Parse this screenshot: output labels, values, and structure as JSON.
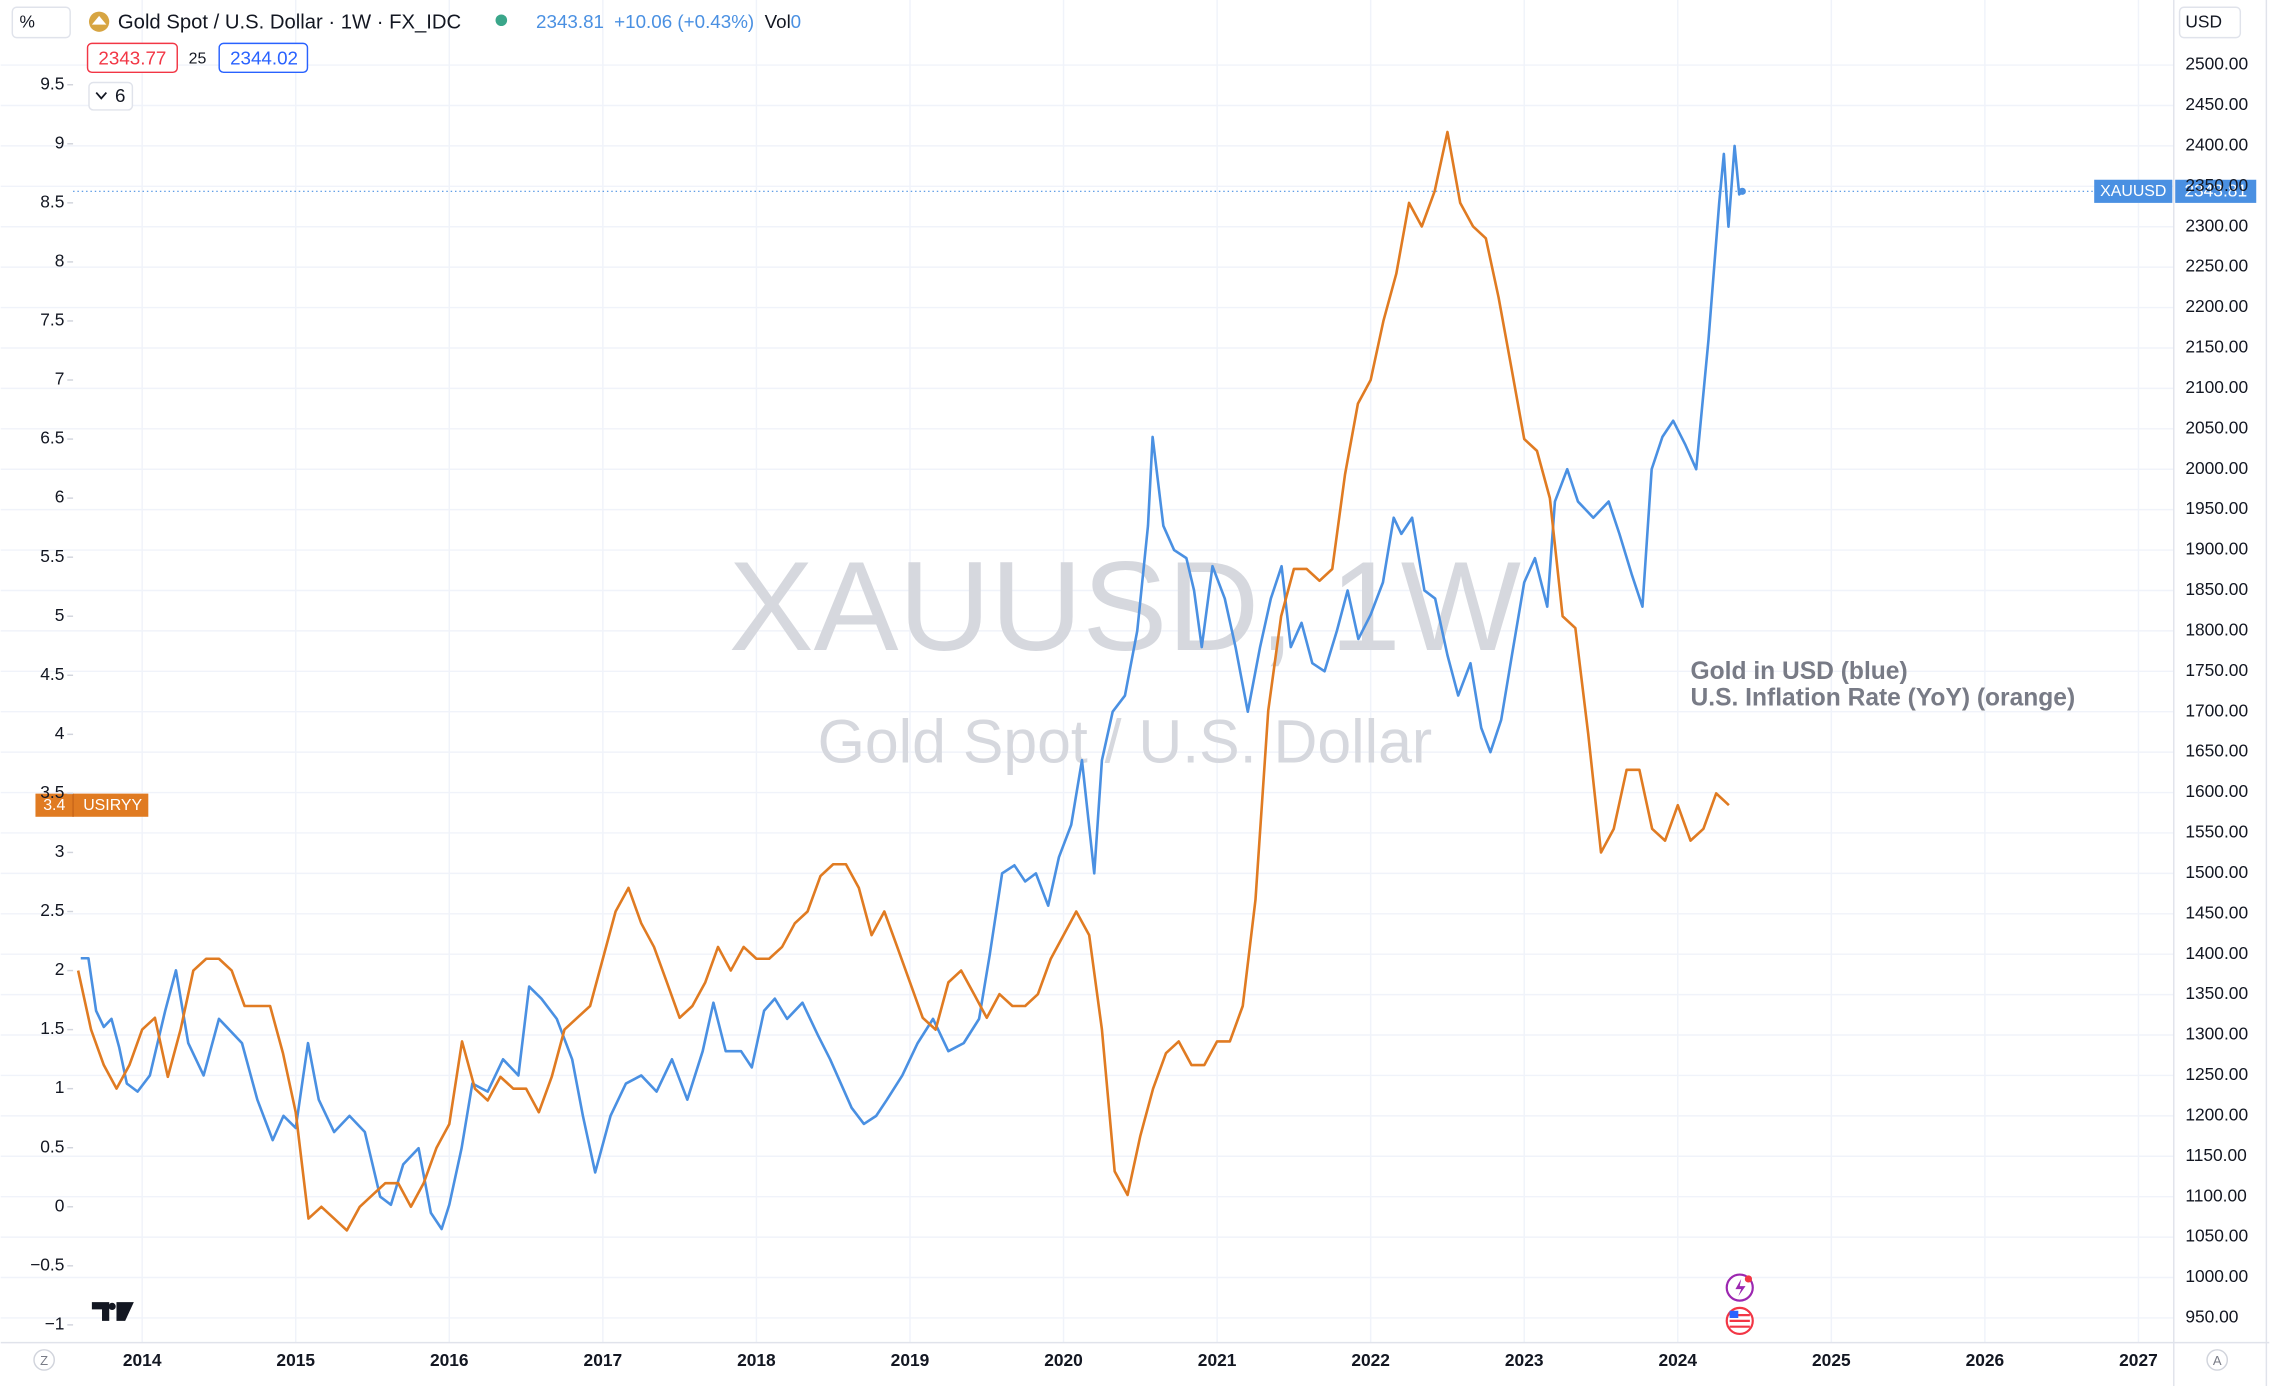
{
  "chart_data": {
    "type": "line",
    "title": "Gold Spot / U.S. Dollar · 1W · FX_IDC",
    "header": {
      "price": "2343.81",
      "change": "+10.06 (+0.43%)",
      "vol_label": "Vol",
      "vol": "0",
      "sell": "2343.77",
      "spread": "25",
      "buy": "2344.02",
      "indicators": "6",
      "scale_mode": "%",
      "currency": "USD",
      "left_button": "Z",
      "right_button": "A"
    },
    "watermark": [
      "XAUUSD, 1W",
      "Gold Spot / U.S. Dollar"
    ],
    "annotations": [
      "Gold in USD (blue)",
      "U.S. Inflation Rate (YoY) (orange)"
    ],
    "grid": true,
    "xlim": [
      2013.55,
      2027.23
    ],
    "xticks": [
      2014,
      2015,
      2016,
      2017,
      2018,
      2019,
      2020,
      2021,
      2022,
      2023,
      2024,
      2025,
      2026,
      2027
    ],
    "ylim": [
      -1.15,
      9.85
    ],
    "yticks": [
      {
        "value": -1,
        "label": "−1"
      },
      {
        "value": -0.5,
        "label": "−0.5"
      },
      0,
      0.5,
      1,
      1.5,
      2,
      2.5,
      3,
      3.5,
      4,
      4.5,
      5,
      5.5,
      6,
      6.5,
      7,
      7.5,
      8,
      8.5,
      9,
      9.5
    ],
    "y2lim": [
      919.5,
      2526.8
    ],
    "y2ticks": [
      {
        "value": 950,
        "label": "950.00"
      },
      {
        "value": 1000,
        "label": "1000.00"
      },
      {
        "value": 1050,
        "label": "1050.00"
      },
      {
        "value": 1100,
        "label": "1100.00"
      },
      {
        "value": 1150,
        "label": "1150.00"
      },
      {
        "value": 1200,
        "label": "1200.00"
      },
      {
        "value": 1250,
        "label": "1250.00"
      },
      {
        "value": 1300,
        "label": "1300.00"
      },
      {
        "value": 1350,
        "label": "1350.00"
      },
      {
        "value": 1400,
        "label": "1400.00"
      },
      {
        "value": 1450,
        "label": "1450.00"
      },
      {
        "value": 1500,
        "label": "1500.00"
      },
      {
        "value": 1550,
        "label": "1550.00"
      },
      {
        "value": 1600,
        "label": "1600.00"
      },
      {
        "value": 1650,
        "label": "1650.00"
      },
      {
        "value": 1700,
        "label": "1700.00"
      },
      {
        "value": 1750,
        "label": "1750.00"
      },
      {
        "value": 1800,
        "label": "1800.00"
      },
      {
        "value": 1850,
        "label": "1850.00"
      },
      {
        "value": 1900,
        "label": "1900.00"
      },
      {
        "value": 1950,
        "label": "1950.00"
      },
      {
        "value": 2000,
        "label": "2000.00"
      },
      {
        "value": 2050,
        "label": "2050.00"
      },
      {
        "value": 2100,
        "label": "2100.00"
      },
      {
        "value": 2150,
        "label": "2150.00"
      },
      {
        "value": 2200,
        "label": "2200.00"
      },
      {
        "value": 2250,
        "label": "2250.00"
      },
      {
        "value": 2300,
        "label": "2300.00"
      },
      {
        "value": 2350,
        "label": "2350.00"
      },
      {
        "value": 2400,
        "label": "2400.00"
      },
      {
        "value": 2450,
        "label": "2450.00"
      },
      {
        "value": 2500,
        "label": "2500.00"
      }
    ],
    "series": [
      {
        "name": "XAUUSD",
        "color": "#4a90e2",
        "axis": "y2",
        "x": [
          2013.6,
          2013.65,
          2013.7,
          2013.75,
          2013.8,
          2013.85,
          2013.9,
          2013.97,
          2014.05,
          2014.15,
          2014.22,
          2014.3,
          2014.4,
          2014.5,
          2014.55,
          2014.65,
          2014.75,
          2014.85,
          2014.92,
          2015.0,
          2015.08,
          2015.15,
          2015.25,
          2015.35,
          2015.45,
          2015.55,
          2015.62,
          2015.7,
          2015.8,
          2015.88,
          2015.95,
          2016.0,
          2016.08,
          2016.15,
          2016.25,
          2016.35,
          2016.45,
          2016.52,
          2016.6,
          2016.7,
          2016.8,
          2016.87,
          2016.95,
          2017.05,
          2017.15,
          2017.25,
          2017.35,
          2017.45,
          2017.55,
          2017.65,
          2017.72,
          2017.8,
          2017.9,
          2017.97,
          2018.05,
          2018.12,
          2018.2,
          2018.3,
          2018.4,
          2018.48,
          2018.55,
          2018.62,
          2018.7,
          2018.78,
          2018.85,
          2018.95,
          2019.05,
          2019.15,
          2019.25,
          2019.35,
          2019.45,
          2019.52,
          2019.6,
          2019.68,
          2019.75,
          2019.82,
          2019.9,
          2019.97,
          2020.05,
          2020.12,
          2020.2,
          2020.25,
          2020.32,
          2020.4,
          2020.48,
          2020.55,
          2020.58,
          2020.65,
          2020.72,
          2020.8,
          2020.85,
          2020.9,
          2020.97,
          2021.05,
          2021.12,
          2021.2,
          2021.28,
          2021.35,
          2021.42,
          2021.48,
          2021.55,
          2021.62,
          2021.7,
          2021.78,
          2021.85,
          2021.92,
          2022.0,
          2022.08,
          2022.15,
          2022.2,
          2022.27,
          2022.35,
          2022.42,
          2022.5,
          2022.57,
          2022.65,
          2022.72,
          2022.78,
          2022.85,
          2022.92,
          2023.0,
          2023.07,
          2023.15,
          2023.2,
          2023.28,
          2023.35,
          2023.45,
          2023.55,
          2023.62,
          2023.7,
          2023.77,
          2023.83,
          2023.9,
          2023.97,
          2024.05,
          2024.12,
          2024.2,
          2024.27,
          2024.3,
          2024.33,
          2024.37,
          2024.4,
          2024.42
        ],
        "values": [
          1395,
          1395,
          1330,
          1310,
          1320,
          1285,
          1240,
          1230,
          1250,
          1330,
          1380,
          1290,
          1250,
          1320,
          1310,
          1290,
          1220,
          1170,
          1200,
          1185,
          1290,
          1220,
          1180,
          1200,
          1180,
          1100,
          1090,
          1140,
          1160,
          1080,
          1060,
          1090,
          1160,
          1240,
          1230,
          1270,
          1250,
          1360,
          1345,
          1320,
          1270,
          1200,
          1130,
          1200,
          1240,
          1250,
          1230,
          1270,
          1220,
          1280,
          1340,
          1280,
          1280,
          1260,
          1330,
          1345,
          1320,
          1340,
          1300,
          1270,
          1240,
          1210,
          1190,
          1200,
          1220,
          1250,
          1290,
          1320,
          1280,
          1290,
          1320,
          1400,
          1500,
          1510,
          1490,
          1500,
          1460,
          1520,
          1560,
          1640,
          1500,
          1640,
          1700,
          1720,
          1800,
          1930,
          2040,
          1930,
          1900,
          1890,
          1850,
          1780,
          1880,
          1840,
          1780,
          1700,
          1780,
          1840,
          1880,
          1780,
          1810,
          1760,
          1750,
          1800,
          1850,
          1790,
          1820,
          1860,
          1940,
          1920,
          1940,
          1850,
          1840,
          1770,
          1720,
          1760,
          1680,
          1650,
          1690,
          1770,
          1860,
          1890,
          1830,
          1960,
          2000,
          1960,
          1940,
          1960,
          1920,
          1870,
          1830,
          2000,
          2040,
          2060,
          2030,
          2000,
          2160,
          2330,
          2390,
          2300,
          2400,
          2340,
          2343.81
        ]
      },
      {
        "name": "USIRYY",
        "color": "#e07b22",
        "axis": "y",
        "x": [
          2013.583,
          2013.667,
          2013.75,
          2013.833,
          2013.917,
          2014.0,
          2014.083,
          2014.167,
          2014.25,
          2014.333,
          2014.417,
          2014.5,
          2014.583,
          2014.667,
          2014.75,
          2014.833,
          2014.917,
          2015.0,
          2015.083,
          2015.167,
          2015.25,
          2015.333,
          2015.417,
          2015.5,
          2015.583,
          2015.667,
          2015.75,
          2015.833,
          2015.917,
          2016.0,
          2016.083,
          2016.167,
          2016.25,
          2016.333,
          2016.417,
          2016.5,
          2016.583,
          2016.667,
          2016.75,
          2016.833,
          2016.917,
          2017.0,
          2017.083,
          2017.167,
          2017.25,
          2017.333,
          2017.417,
          2017.5,
          2017.583,
          2017.667,
          2017.75,
          2017.833,
          2017.917,
          2018.0,
          2018.083,
          2018.167,
          2018.25,
          2018.333,
          2018.417,
          2018.5,
          2018.583,
          2018.667,
          2018.75,
          2018.833,
          2018.917,
          2019.0,
          2019.083,
          2019.167,
          2019.25,
          2019.333,
          2019.417,
          2019.5,
          2019.583,
          2019.667,
          2019.75,
          2019.833,
          2019.917,
          2020.0,
          2020.083,
          2020.167,
          2020.25,
          2020.333,
          2020.417,
          2020.5,
          2020.583,
          2020.667,
          2020.75,
          2020.833,
          2020.917,
          2021.0,
          2021.083,
          2021.167,
          2021.25,
          2021.333,
          2021.417,
          2021.5,
          2021.583,
          2021.667,
          2021.75,
          2021.833,
          2021.917,
          2022.0,
          2022.083,
          2022.167,
          2022.25,
          2022.333,
          2022.417,
          2022.5,
          2022.583,
          2022.667,
          2022.75,
          2022.833,
          2022.917,
          2023.0,
          2023.083,
          2023.167,
          2023.25,
          2023.333,
          2023.417,
          2023.5,
          2023.583,
          2023.667,
          2023.75,
          2023.833,
          2023.917,
          2024.0,
          2024.083,
          2024.167,
          2024.25,
          2024.333
        ],
        "values": [
          2.0,
          1.5,
          1.2,
          1.0,
          1.2,
          1.5,
          1.6,
          1.1,
          1.5,
          2.0,
          2.1,
          2.1,
          2.0,
          1.7,
          1.7,
          1.7,
          1.3,
          0.8,
          -0.1,
          0.0,
          -0.1,
          -0.2,
          0.0,
          0.1,
          0.2,
          0.2,
          0.0,
          0.2,
          0.5,
          0.7,
          1.4,
          1.0,
          0.9,
          1.1,
          1.0,
          1.0,
          0.8,
          1.1,
          1.5,
          1.6,
          1.7,
          2.1,
          2.5,
          2.7,
          2.4,
          2.2,
          1.9,
          1.6,
          1.7,
          1.9,
          2.2,
          2.0,
          2.2,
          2.1,
          2.1,
          2.2,
          2.4,
          2.5,
          2.8,
          2.9,
          2.9,
          2.7,
          2.3,
          2.5,
          2.2,
          1.9,
          1.6,
          1.5,
          1.9,
          2.0,
          1.8,
          1.6,
          1.8,
          1.7,
          1.7,
          1.8,
          2.1,
          2.3,
          2.5,
          2.3,
          1.5,
          0.3,
          0.1,
          0.6,
          1.0,
          1.3,
          1.4,
          1.2,
          1.2,
          1.4,
          1.4,
          1.7,
          2.6,
          4.2,
          5.0,
          5.4,
          5.4,
          5.3,
          5.4,
          6.2,
          6.8,
          7.0,
          7.5,
          7.9,
          8.5,
          8.3,
          8.6,
          9.1,
          8.5,
          8.3,
          8.2,
          7.7,
          7.1,
          6.5,
          6.4,
          6.0,
          5.0,
          4.9,
          4.0,
          3.0,
          3.2,
          3.7,
          3.7,
          3.2,
          3.1,
          3.4,
          3.1,
          3.2,
          3.5,
          3.4
        ]
      }
    ]
  }
}
